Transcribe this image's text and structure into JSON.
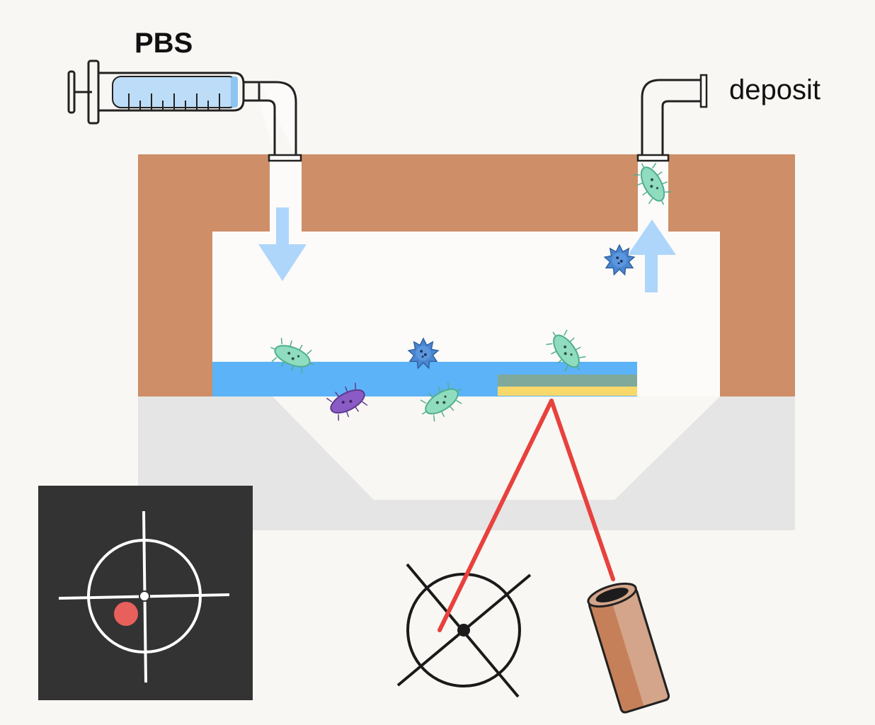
{
  "labels": {
    "syringe_liquid": "PBS",
    "outlet": "deposit"
  },
  "colors": {
    "background": "#f9f7f3",
    "chamber_wall": "#cd8e68",
    "chamber_interior": "#fcfbf9",
    "base": "#e5e5e5",
    "liquid_layer": "#5db3f7",
    "sensor_top": "#7fa99b",
    "sensor_bottom": "#f8d86a",
    "flow_arrow": "#aed6fb",
    "laser_beam": "#e8413d",
    "detector_panel": "#333333",
    "detector_spot": "#e8605b",
    "laser_tube": "#c98a62"
  },
  "icons": {
    "syringe": "syringe-icon",
    "inlet_pipe": "elbow-pipe-icon",
    "outlet_pipe": "elbow-pipe-icon",
    "inflow": "arrow-down-icon",
    "outflow": "arrow-up-icon",
    "bacteria": "bacterium-icon",
    "virus": "virus-icon",
    "detector": "crosshair-icon",
    "laser": "laser-tube-icon"
  }
}
